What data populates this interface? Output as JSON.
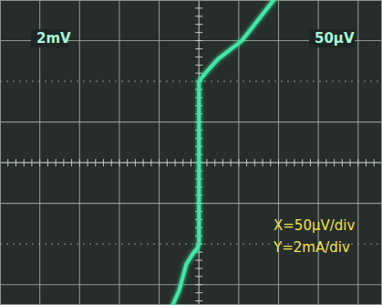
{
  "chart_data": {
    "type": "line",
    "annotations": [
      "2mV",
      "50µV",
      "X=50µV/div",
      "Y=2mA/div"
    ],
    "series": [
      {
        "color": "#3fe8a8",
        "x": [
          -33,
          -25,
          -16,
          -8,
          -2,
          0,
          0,
          8,
          24,
          54,
          94
        ],
        "values": [
          -7.0,
          -6.3,
          -5.0,
          -4.5,
          -4.2,
          -4.0,
          4.0,
          4.4,
          5.1,
          6.0,
          8.0
        ]
      }
    ],
    "xlim": [
      -250,
      230
    ],
    "xticks": [
      -200,
      -150,
      -100,
      -50,
      0,
      50,
      100,
      150,
      200
    ],
    "ylim": [
      -7,
      8
    ],
    "yticks": [
      -6,
      -4,
      -2,
      0,
      2,
      4,
      6
    ],
    "grid": true,
    "tick_labels": false
  }
}
